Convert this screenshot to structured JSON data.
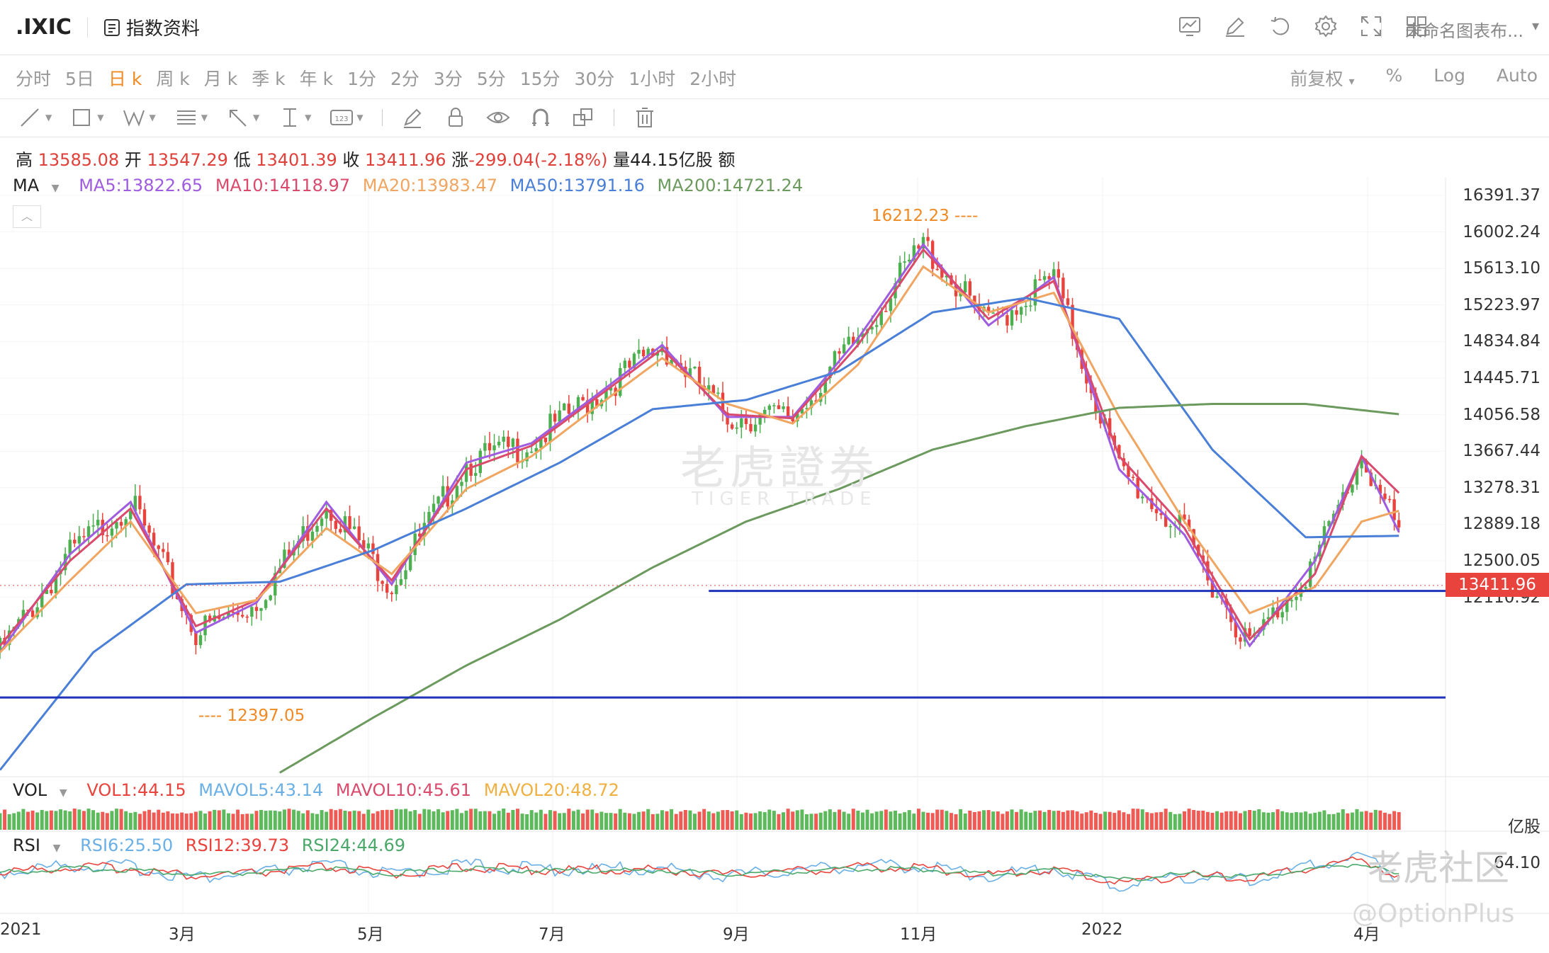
{
  "topbar": {
    "symbol": ".IXIC",
    "index_info": "指数资料",
    "layout_name": "未命名图表布...",
    "icons": [
      "chart-template-icon",
      "drawing-pen-icon",
      "undo-icon",
      "settings-gear-icon",
      "fullscreen-icon",
      "layout-grid-icon"
    ]
  },
  "periods": {
    "items": [
      "分时",
      "5日",
      "日 k",
      "周 k",
      "月 k",
      "季 k",
      "年 k",
      "1分",
      "2分",
      "3分",
      "5分",
      "15分",
      "30分",
      "1小时",
      "2小时"
    ],
    "active_index": 2,
    "adjust": "前复权",
    "percent": "%",
    "log": "Log",
    "auto": "Auto"
  },
  "toolbar": {
    "tools": [
      "line-tool-icon",
      "rectangle-tool-icon",
      "wave-tool-icon",
      "fib-tool-icon",
      "arrow-tool-icon",
      "measure-tool-icon",
      "label-tool-icon",
      "brush-icon",
      "lock-icon",
      "eye-icon",
      "magnet-icon",
      "clone-icon",
      "trash-icon"
    ]
  },
  "ohlc": {
    "high_label": "高",
    "high": "13585.08",
    "open_label": "开",
    "open": "13547.29",
    "low_label": "低",
    "low": "13401.39",
    "close_label": "收",
    "close": "13411.96",
    "change_label": "涨",
    "change": "-299.04(-2.18%)",
    "volume_label": "量",
    "volume": "44.15亿股",
    "amount_label": "额"
  },
  "ma_legend": {
    "label": "MA",
    "ma5": "MA5:13822.65",
    "ma10": "MA10:14118.97",
    "ma20": "MA20:13983.47",
    "ma50": "MA50:13791.16",
    "ma200": "MA200:14721.24"
  },
  "vol_legend": {
    "label": "VOL",
    "vol1": "VOL1:44.15",
    "mavol5": "MAVOL5:43.14",
    "mavol10": "MAVOL10:45.61",
    "mavol20": "MAVOL20:48.72",
    "unit": "亿股"
  },
  "rsi_legend": {
    "label": "RSI",
    "rsi6": "RSI6:25.50",
    "rsi12": "RSI12:39.73",
    "rsi24": "RSI24:44.69",
    "axis_value": "64.10"
  },
  "price_axis": [
    "16391.37",
    "16002.24",
    "15613.10",
    "15223.97",
    "14834.84",
    "14445.71",
    "14056.58",
    "13667.44",
    "13278.31",
    "12889.18",
    "12500.05",
    "12110.92"
  ],
  "current_price": "13411.96",
  "annotations": {
    "high": "16212.23",
    "low": "12397.05"
  },
  "x_axis": [
    "2021",
    "3月",
    "5月",
    "7月",
    "9月",
    "11月",
    "2022",
    "4月"
  ],
  "watermarks": {
    "center_cn": "老虎證券",
    "center_en": "TIGER TRADE",
    "corner_cn": "老虎社区",
    "corner_en": "@OptionPlus"
  },
  "colors": {
    "up": "#4caf50",
    "down": "#e8433c",
    "ma5": "#a05ce0",
    "ma10": "#d94a6c",
    "ma20": "#f0a560",
    "ma50": "#4a7fd8",
    "ma200": "#6c9a5e",
    "support": "#1f33b8",
    "accent": "#f08a24"
  },
  "chart_data": {
    "type": "line",
    "title": "",
    "xlabel": "",
    "ylabel": "",
    "ylim": [
      11900,
      16600
    ],
    "x_ticks": [
      "2021",
      "3月",
      "5月",
      "7月",
      "9月",
      "11月",
      "2022",
      "4月"
    ],
    "series": [
      {
        "name": "MA5",
        "x": [
          0,
          15,
          28,
          42,
          55,
          70,
          84,
          100,
          114,
          128,
          142,
          156,
          170,
          184,
          198,
          212,
          226,
          240,
          254,
          268,
          282,
          292,
          300
        ],
        "values": [
          12900,
          13650,
          14050,
          13050,
          13280,
          14050,
          13420,
          14350,
          14500,
          14870,
          15250,
          14700,
          14700,
          15300,
          16020,
          15400,
          15770,
          14300,
          13800,
          12950,
          13600,
          14400,
          13820
        ]
      },
      {
        "name": "MA10",
        "x": [
          0,
          15,
          28,
          42,
          55,
          70,
          84,
          100,
          114,
          128,
          142,
          156,
          170,
          184,
          198,
          212,
          226,
          240,
          254,
          268,
          282,
          292,
          300
        ],
        "values": [
          12950,
          13600,
          14000,
          13100,
          13300,
          14000,
          13450,
          14300,
          14480,
          14850,
          15220,
          14720,
          14690,
          15250,
          15980,
          15450,
          15740,
          14400,
          13850,
          13000,
          13500,
          14400,
          14119
        ]
      },
      {
        "name": "MA20",
        "x": [
          0,
          15,
          28,
          42,
          55,
          70,
          84,
          100,
          114,
          128,
          142,
          156,
          170,
          184,
          198,
          212,
          226,
          240,
          254,
          268,
          282,
          292,
          300
        ],
        "values": [
          12900,
          13450,
          13900,
          13200,
          13300,
          13850,
          13500,
          14150,
          14400,
          14780,
          15150,
          14800,
          14650,
          15100,
          15850,
          15500,
          15650,
          14700,
          13900,
          13200,
          13400,
          13900,
          13983
        ]
      },
      {
        "name": "MA50",
        "x": [
          0,
          20,
          40,
          60,
          80,
          100,
          120,
          140,
          160,
          180,
          200,
          220,
          240,
          260,
          280,
          300
        ],
        "values": [
          12000,
          12900,
          13420,
          13440,
          13680,
          14000,
          14350,
          14760,
          14830,
          15050,
          15500,
          15610,
          15450,
          14450,
          13780,
          13791
        ]
      },
      {
        "name": "MA200",
        "x": [
          60,
          80,
          100,
          120,
          140,
          160,
          180,
          200,
          220,
          240,
          260,
          280,
          300
        ],
        "values": [
          11980,
          12400,
          12800,
          13150,
          13550,
          13900,
          14150,
          14450,
          14630,
          14770,
          14800,
          14800,
          14721
        ]
      }
    ],
    "levels": [
      {
        "name": "resistance-support-upper",
        "value": 13370,
        "x_from": 152,
        "x_to": 310
      },
      {
        "name": "support-lower",
        "value": 12555,
        "x_from": 0,
        "x_to": 310
      }
    ],
    "extremes": {
      "high": 16212.23,
      "low": 12397.05
    }
  }
}
